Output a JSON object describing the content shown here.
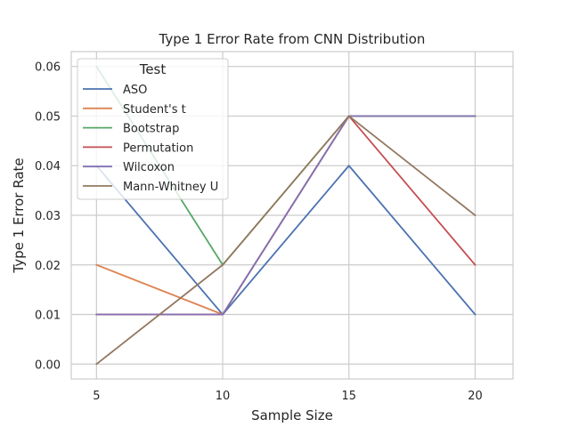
{
  "chart_data": {
    "type": "line",
    "title": "Type 1 Error Rate from CNN Distribution",
    "xlabel": "Sample Size",
    "ylabel": "Type 1 Error Rate",
    "x": [
      5,
      10,
      15,
      20
    ],
    "xlim": [
      4,
      21.5
    ],
    "ylim": [
      -0.003,
      0.063
    ],
    "xticks": [
      "5",
      "10",
      "15",
      "20"
    ],
    "yticks": [
      "0.00",
      "0.01",
      "0.02",
      "0.03",
      "0.04",
      "0.05",
      "0.06"
    ],
    "grid": true,
    "legend": {
      "title": "Test",
      "placement": "upper-left"
    },
    "series": [
      {
        "name": "ASO",
        "color": "#4c72b0",
        "values": [
          0.04,
          0.01,
          0.04,
          0.01
        ]
      },
      {
        "name": "Student's t",
        "color": "#dd8452",
        "values": [
          0.02,
          0.01,
          0.05,
          0.05
        ]
      },
      {
        "name": "Bootstrap",
        "color": "#55a868",
        "values": [
          0.06,
          0.02,
          0.05,
          0.05
        ]
      },
      {
        "name": "Permutation",
        "color": "#c44e52",
        "values": [
          0.01,
          0.01,
          0.05,
          0.02
        ]
      },
      {
        "name": "Wilcoxon",
        "color": "#8172b3",
        "values": [
          0.01,
          0.01,
          0.05,
          0.05
        ]
      },
      {
        "name": "Mann-Whitney U",
        "color": "#937860",
        "values": [
          0.0,
          0.02,
          0.05,
          0.03
        ]
      }
    ]
  }
}
